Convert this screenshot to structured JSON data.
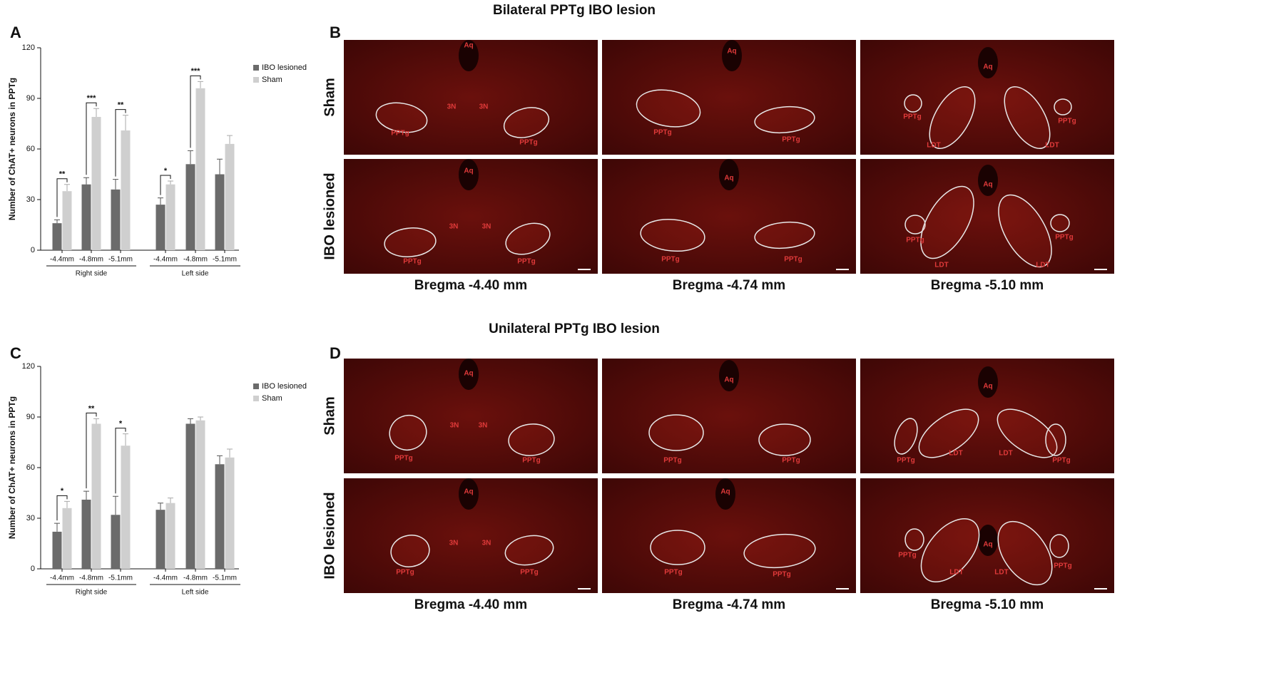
{
  "title_top": "Bilateral PPTg IBO lesion",
  "title_bottom": "Unilateral PPTg IBO lesion",
  "panel_letters": [
    "A",
    "B",
    "C",
    "D"
  ],
  "chart_data": [
    {
      "type": "bar",
      "ylabel": "Number of ChAT+ neurons in PPTg",
      "groups": [
        {
          "name": "Right side",
          "categories": [
            "-4.4mm",
            "-4.8mm",
            "-5.1mm"
          ]
        },
        {
          "name": "Left side",
          "categories": [
            "-4.4mm",
            "-4.8mm",
            "-5.1mm"
          ]
        }
      ],
      "series": [
        {
          "name": "IBO lesioned",
          "color": "#6b6b6b",
          "values": [
            16,
            39,
            36,
            27,
            51,
            45
          ],
          "errors": [
            2,
            4,
            6,
            4,
            8,
            9
          ]
        },
        {
          "name": "Sham",
          "color": "#cfcfcf",
          "values": [
            35,
            79,
            71,
            39,
            96,
            63
          ],
          "errors": [
            4,
            5,
            9,
            2,
            4,
            5
          ]
        }
      ],
      "significance": [
        "**",
        "***",
        "**",
        "*",
        "***",
        null
      ],
      "ylim": [
        0,
        120
      ],
      "yticks": [
        0,
        30,
        60,
        90,
        120
      ]
    },
    {
      "type": "bar",
      "ylabel": "Number of ChAT+ neurons in PPTg",
      "groups": [
        {
          "name": "Right side",
          "categories": [
            "-4.4mm",
            "-4.8mm",
            "-5.1mm"
          ]
        },
        {
          "name": "Left side",
          "categories": [
            "-4.4mm",
            "-4.8mm",
            "-5.1mm"
          ]
        }
      ],
      "series": [
        {
          "name": "IBO lesioned",
          "color": "#6b6b6b",
          "values": [
            22,
            41,
            32,
            35,
            86,
            62
          ],
          "errors": [
            5,
            5,
            11,
            4,
            3,
            5
          ]
        },
        {
          "name": "Sham",
          "color": "#cfcfcf",
          "values": [
            36,
            86,
            73,
            39,
            88,
            66
          ],
          "errors": [
            4,
            3,
            7,
            3,
            2,
            5
          ]
        }
      ],
      "significance": [
        "*",
        "**",
        "*",
        null,
        null,
        null
      ],
      "ylim": [
        0,
        120
      ],
      "yticks": [
        0,
        30,
        60,
        90,
        120
      ]
    }
  ],
  "image_panels": [
    {
      "row_labels": [
        "Sham",
        "IBO lesioned"
      ],
      "column_labels": [
        "Bregma -4.40 mm",
        "Bregma -4.74 mm",
        "Bregma -5.10 mm"
      ],
      "images": [
        {
          "labels": [
            "Aq",
            "3N",
            "3N",
            "PPTg",
            "PPTg"
          ]
        },
        {
          "labels": [
            "Aq",
            "PPTg",
            "PPTg"
          ]
        },
        {
          "labels": [
            "Aq",
            "PPTg",
            "PPTg",
            "LDT",
            "LDT"
          ]
        },
        {
          "labels": [
            "Aq",
            "3N",
            "3N",
            "PPTg",
            "PPTg"
          ]
        },
        {
          "labels": [
            "Aq",
            "PPTg",
            "PPTg"
          ]
        },
        {
          "labels": [
            "Aq",
            "PPTg",
            "PPTg",
            "LDT",
            "LDT"
          ]
        }
      ]
    },
    {
      "row_labels": [
        "Sham",
        "IBO lesioned"
      ],
      "column_labels": [
        "Bregma -4.40 mm",
        "Bregma -4.74 mm",
        "Bregma -5.10 mm"
      ],
      "images": [
        {
          "labels": [
            "Aq",
            "3N",
            "3N",
            "PPTg",
            "PPTg"
          ]
        },
        {
          "labels": [
            "Aq",
            "PPTg",
            "PPTg"
          ]
        },
        {
          "labels": [
            "Aq",
            "PPTg",
            "LDT",
            "LDT",
            "PPTg"
          ]
        },
        {
          "labels": [
            "Aq",
            "3N",
            "3N",
            "PPTg",
            "PPTg"
          ]
        },
        {
          "labels": [
            "Aq",
            "PPTg",
            "PPTg"
          ]
        },
        {
          "labels": [
            "Aq",
            "PPTg",
            "LDT",
            "LDT",
            "PPTg"
          ]
        }
      ]
    }
  ]
}
